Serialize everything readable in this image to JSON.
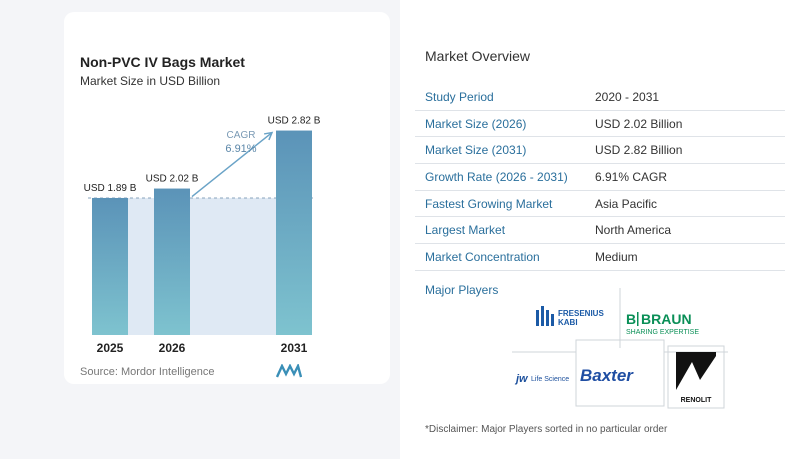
{
  "chart_data": {
    "type": "bar",
    "title": "Non-PVC IV Bags Market",
    "subtitle": "Market Size in USD Billion",
    "categories": [
      "2025",
      "2026",
      "2031"
    ],
    "values": [
      1.89,
      2.02,
      2.82
    ],
    "value_labels": [
      "USD 1.89 B",
      "USD 2.02 B",
      "USD 2.82 B"
    ],
    "cagr_label": "CAGR",
    "cagr_value": "6.91%",
    "ylim": [
      0,
      3.2
    ],
    "grid": false,
    "colors": {
      "bar_top": "#5b93b8",
      "bar_bottom": "#7ec3cf",
      "shade": "#dfe9f4",
      "arrow": "#6aa3c7"
    }
  },
  "source": "Source:  Mordor Intelligence",
  "overview": {
    "title": "Market Overview",
    "rows": [
      {
        "label": "Study Period",
        "value": "2020 - 2031"
      },
      {
        "label": "Market Size (2026)",
        "value": "USD 2.02 Billion"
      },
      {
        "label": "Market Size (2031)",
        "value": "USD 2.82 Billion"
      },
      {
        "label": "Growth Rate (2026 - 2031)",
        "value": "6.91% CAGR"
      },
      {
        "label": "Fastest Growing Market",
        "value": "Asia Pacific"
      },
      {
        "label": "Largest Market",
        "value": "North America"
      },
      {
        "label": "Market Concentration",
        "value": "Medium"
      }
    ]
  },
  "players": {
    "title": "Major Players",
    "fresenius": [
      "FRESENIUS",
      "KABI"
    ],
    "braun": [
      "B",
      "BRAUN",
      "SHARING EXPERTISE"
    ],
    "jw": [
      "jw",
      "Life Science"
    ],
    "baxter": "Baxter",
    "renolit": "RENOLIT"
  },
  "disclaimer": "*Disclaimer: Major Players sorted in no particular order"
}
